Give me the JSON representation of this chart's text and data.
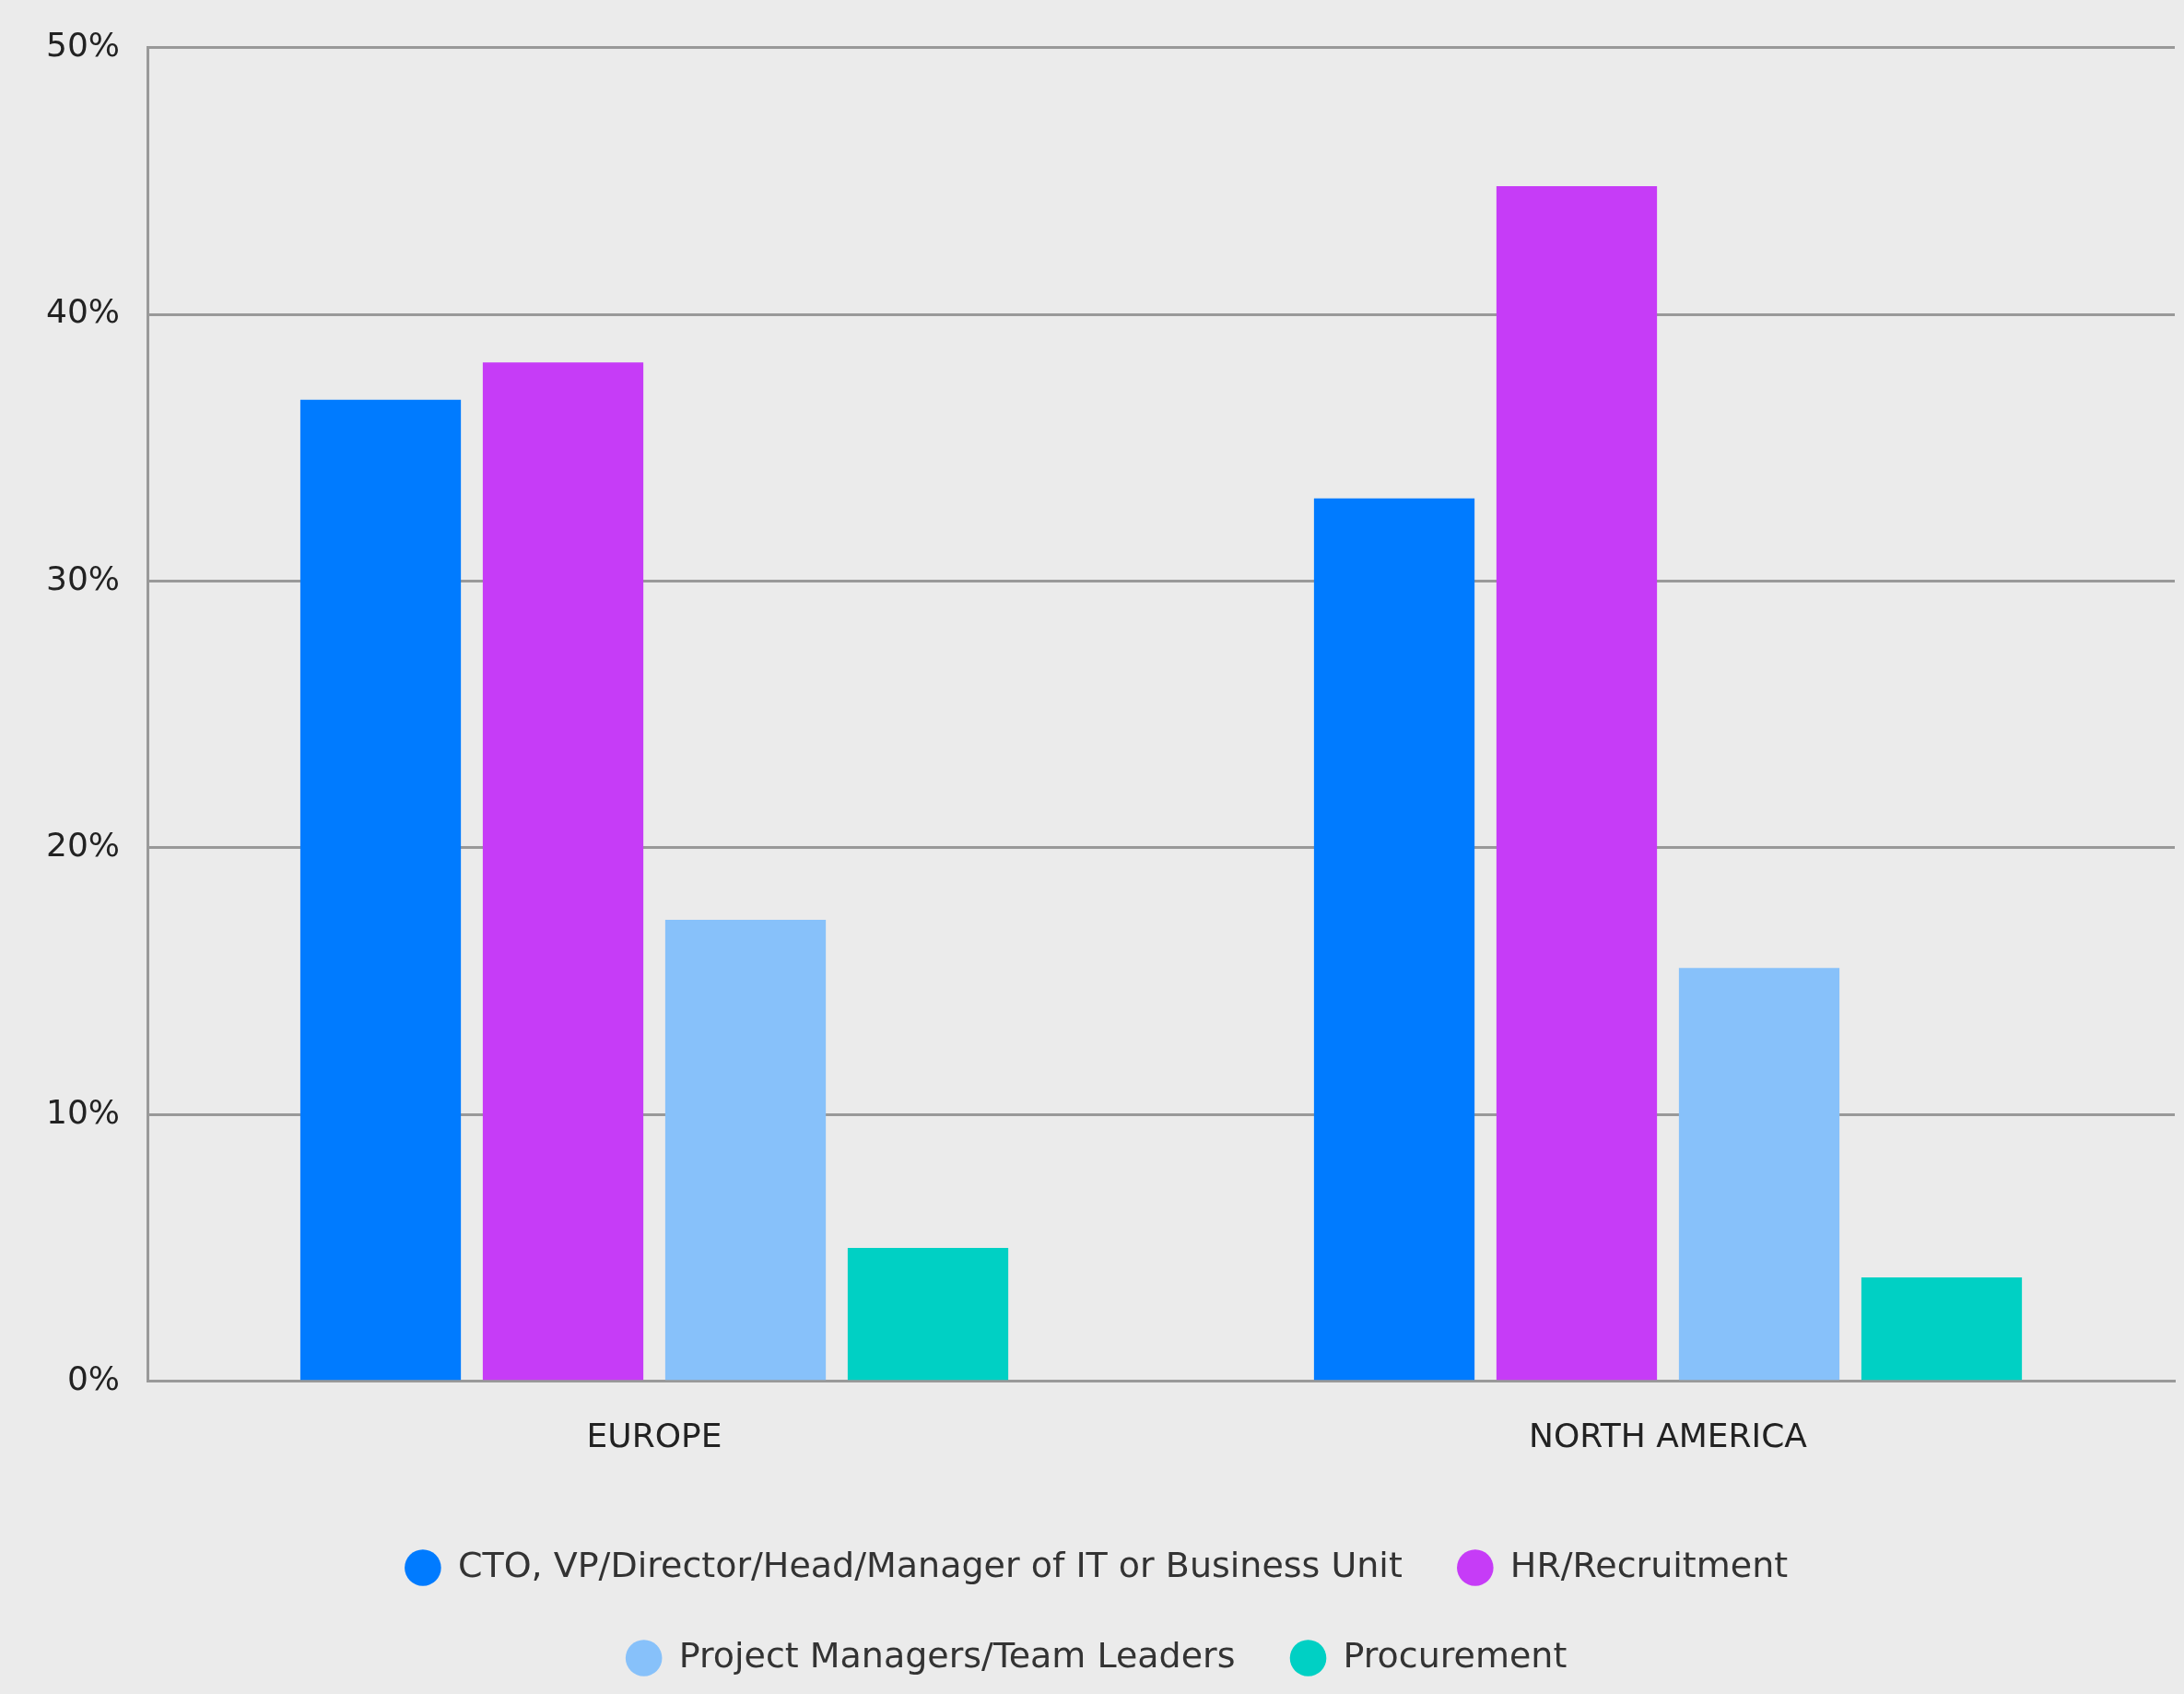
{
  "chart_data": {
    "type": "bar",
    "categories": [
      "EUROPE",
      "NORTH AMERICA"
    ],
    "series": [
      {
        "name": "CTO, VP/Director/Head/Manager of IT or Business Unit",
        "color": "#007bff",
        "values": [
          36.8,
          33.1
        ]
      },
      {
        "name": "HR/Recruitment",
        "color": "#c63cf7",
        "values": [
          38.2,
          44.8
        ]
      },
      {
        "name": "Project Managers/Team Leaders",
        "color": "#87c1fa",
        "values": [
          17.3,
          15.5
        ]
      },
      {
        "name": "Procurement",
        "color": "#00d0c4",
        "values": [
          5.0,
          3.9
        ]
      }
    ],
    "ylim": [
      0,
      50
    ],
    "yticks": [
      {
        "value": 0,
        "label": "0%"
      },
      {
        "value": 10,
        "label": "10%"
      },
      {
        "value": 20,
        "label": "20%"
      },
      {
        "value": 30,
        "label": "30%"
      },
      {
        "value": 40,
        "label": "40%"
      },
      {
        "value": 50,
        "label": "50%"
      }
    ],
    "grid": "y",
    "legend": "bottom"
  }
}
